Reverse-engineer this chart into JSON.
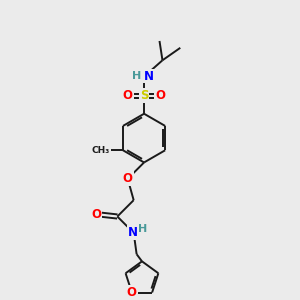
{
  "background_color": "#ebebeb",
  "bond_color": "#1a1a1a",
  "atom_colors": {
    "O": "#ff0000",
    "N": "#0000ff",
    "S": "#cccc00",
    "H": "#4a9a9a",
    "C": "#1a1a1a"
  },
  "figsize": [
    3.0,
    3.0
  ],
  "dpi": 100,
  "lw": 1.4,
  "fs": 8.5
}
